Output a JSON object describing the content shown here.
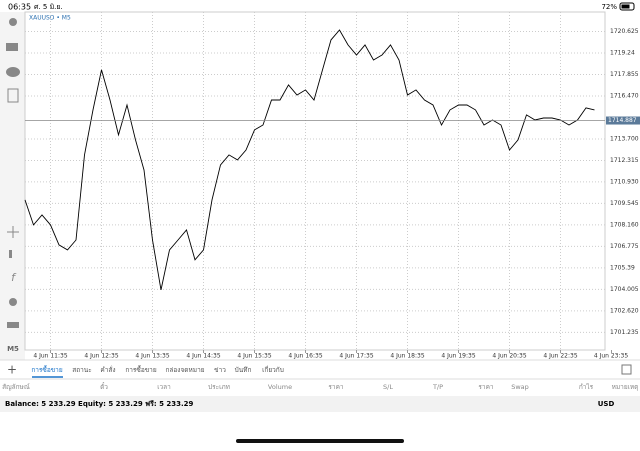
{
  "status_bar": {
    "time": "06:35",
    "date": "ศ. 5 มิ.ย.",
    "battery": "72%"
  },
  "side_toolbar": {
    "timeframe": "M5"
  },
  "chart_data": {
    "type": "line",
    "title": "XAUUSD • M5",
    "categories": [
      null,
      null,
      null,
      "4 Jun 11:35",
      null,
      null,
      null,
      null,
      null,
      "4 Jun 12:35",
      null,
      null,
      null,
      null,
      null,
      "4 Jun 13:35",
      null,
      null,
      null,
      null,
      null,
      "4 Jun 14:35",
      null,
      null,
      null,
      null,
      null,
      "4 Jun 15:35",
      null,
      null,
      null,
      null,
      null,
      "4 Jun 16:35",
      null,
      null,
      null,
      null,
      null,
      "4 Jun 17:35",
      null,
      null,
      null,
      null,
      null,
      "4 Jun 18:35",
      null,
      null,
      null,
      null,
      null,
      "4 Jun 19:35",
      null,
      null,
      null,
      null,
      null,
      "4 Jun 20:35",
      null,
      null,
      null,
      null,
      null,
      "4 Jun 22:35",
      null,
      null,
      null,
      null,
      null,
      "4 Jun 23:35"
    ],
    "series": [
      {
        "name": "XAUUSD",
        "color": "#000000",
        "values": [
          1709.77,
          1708.16,
          1708.8,
          1708.16,
          1706.87,
          1706.55,
          1707.19,
          1712.67,
          1715.57,
          1718.15,
          1716.21,
          1713.96,
          1715.89,
          1713.64,
          1711.7,
          1707.19,
          1703.97,
          1706.55,
          1707.19,
          1707.84,
          1705.91,
          1706.55,
          1709.77,
          1712.03,
          1712.67,
          1712.35,
          1712.99,
          1714.28,
          1714.6,
          1716.21,
          1716.21,
          1717.18,
          1716.53,
          1716.86,
          1716.21,
          1718.15,
          1720.08,
          1720.72,
          1719.76,
          1719.11,
          1719.76,
          1718.79,
          1719.11,
          1719.76,
          1718.79,
          1716.53,
          1716.86,
          1716.21,
          1715.89,
          1714.6,
          1715.57,
          1715.89,
          1715.89,
          1715.57,
          1714.6,
          1714.92,
          1714.6,
          1712.99,
          1713.64,
          1715.25,
          1714.92,
          1715.05,
          1715.05,
          1714.92,
          1714.6,
          1714.92,
          1715.7,
          1715.57,
          null,
          null
        ]
      }
    ],
    "ylim": [
      1700.1,
      1721.88
    ],
    "yticks": [
      1720.625,
      1719.24,
      1717.855,
      {
        "value": 1716.47,
        "label": "1716.470"
      },
      {
        "value": 1713.7,
        "label": "1713.700"
      },
      1712.315,
      {
        "value": 1710.93,
        "label": "1710.930"
      },
      1709.545,
      {
        "value": 1708.16,
        "label": "1708.160"
      },
      1706.775,
      1705.39,
      1704.005,
      {
        "value": 1702.62,
        "label": "1702.620"
      },
      1701.235
    ],
    "current_price": 1714.887,
    "grid": true
  },
  "tabs": [
    "การซื้อขาย",
    "สถานะ",
    "คำสั่ง",
    "การซื้อขาย",
    "กล่องจดหมาย",
    "ข่าว",
    "บันทึก",
    "เกี่ยวกับ"
  ],
  "table": {
    "columns": [
      "สัญลักษณ์",
      "ตั๋ว",
      "เวลา",
      "ประเภท",
      "Volume",
      "ราคา",
      "S/L",
      "T/P",
      "ราคา",
      "Swap",
      "กำไร",
      "หมายเหตุ"
    ]
  },
  "footer": {
    "summary": "Balance: 5 233.29 Equity: 5 233.29 ฟรี: 5 233.29",
    "currency": "USD"
  }
}
